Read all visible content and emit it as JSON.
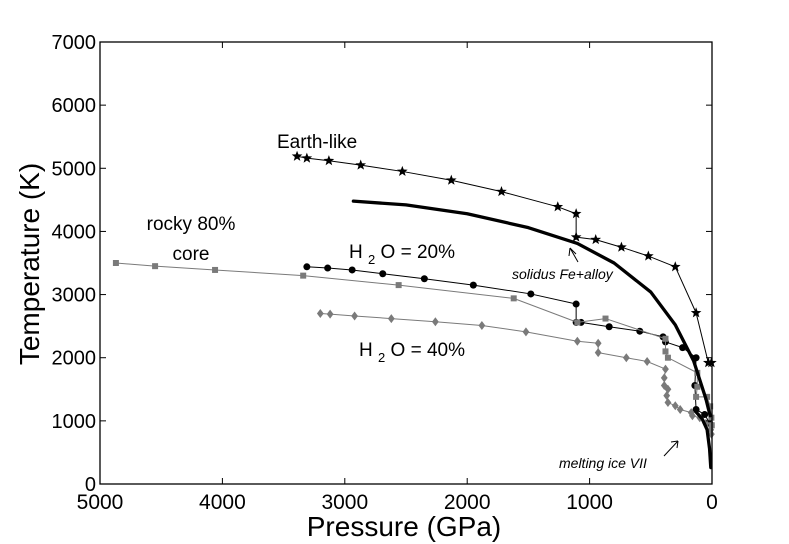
{
  "chart_data": {
    "type": "line",
    "title": "",
    "xlabel": "Pressure (GPa)",
    "ylabel": "Temperature (K)",
    "xlim": [
      5000,
      0
    ],
    "ylim": [
      0,
      7000
    ],
    "x_ticks": [
      "5000",
      "4000",
      "3000",
      "2000",
      "1000",
      "0"
    ],
    "y_ticks": [
      "0",
      "1000",
      "2000",
      "3000",
      "4000",
      "5000",
      "6000",
      "7000"
    ],
    "grid": false,
    "colors": {
      "black": "#000000",
      "gray": "#7a7a7a",
      "white": "#ffffff"
    },
    "series": [
      {
        "name": "Earth-like",
        "label": "Earth-like",
        "marker": "star",
        "color": "#000000",
        "values": [
          [
            3390,
            5190
          ],
          [
            3310,
            5160
          ],
          [
            3130,
            5120
          ],
          [
            2870,
            5050
          ],
          [
            2530,
            4950
          ],
          [
            2130,
            4810
          ],
          [
            1720,
            4630
          ],
          [
            1260,
            4390
          ],
          [
            1110,
            4280
          ],
          [
            1110,
            3910
          ],
          [
            950,
            3870
          ],
          [
            740,
            3750
          ],
          [
            520,
            3610
          ],
          [
            300,
            3440
          ],
          [
            130,
            2710
          ],
          [
            30,
            1920
          ],
          [
            5,
            1920
          ]
        ]
      },
      {
        "name": "H2O = 20%",
        "label_main": "H",
        "label_sub": "2",
        "label_rest": "O = 20%",
        "marker": "circle",
        "color": "#000000",
        "values": [
          [
            3310,
            3440
          ],
          [
            3140,
            3420
          ],
          [
            2940,
            3390
          ],
          [
            2690,
            3330
          ],
          [
            2350,
            3250
          ],
          [
            1950,
            3150
          ],
          [
            1480,
            3010
          ],
          [
            1110,
            2850
          ],
          [
            1110,
            2560
          ],
          [
            1070,
            2560
          ],
          [
            840,
            2490
          ],
          [
            590,
            2420
          ],
          [
            400,
            2330
          ],
          [
            380,
            2250
          ],
          [
            240,
            2160
          ],
          [
            130,
            2000
          ],
          [
            140,
            1560
          ],
          [
            130,
            1180
          ],
          [
            60,
            1100
          ],
          [
            15,
            950
          ]
        ]
      },
      {
        "name": "rocky 80% core",
        "label_line1": "rocky 80%",
        "label_line2": "core",
        "marker": "square",
        "color": "#7a7a7a",
        "values": [
          [
            4870,
            3500
          ],
          [
            4550,
            3450
          ],
          [
            4060,
            3390
          ],
          [
            3340,
            3300
          ],
          [
            2560,
            3150
          ],
          [
            1620,
            2940
          ],
          [
            1100,
            2560
          ],
          [
            870,
            2620
          ],
          [
            380,
            2300
          ],
          [
            380,
            2100
          ],
          [
            360,
            2000
          ],
          [
            120,
            1760
          ],
          [
            120,
            1540
          ],
          [
            130,
            1380
          ],
          [
            40,
            1380
          ],
          [
            15,
            1230
          ],
          [
            5,
            1050
          ],
          [
            2,
            930
          ]
        ]
      },
      {
        "name": "H2O = 40%",
        "label_main": "H",
        "label_sub": "2",
        "label_rest": "O = 40%",
        "marker": "diamond",
        "color": "#7a7a7a",
        "values": [
          [
            3200,
            2700
          ],
          [
            3120,
            2690
          ],
          [
            2920,
            2660
          ],
          [
            2620,
            2620
          ],
          [
            2260,
            2570
          ],
          [
            1880,
            2510
          ],
          [
            1520,
            2410
          ],
          [
            1100,
            2260
          ],
          [
            930,
            2230
          ],
          [
            930,
            2080
          ],
          [
            700,
            2000
          ],
          [
            530,
            1940
          ],
          [
            380,
            1820
          ],
          [
            390,
            1680
          ],
          [
            390,
            1560
          ],
          [
            360,
            1500
          ],
          [
            370,
            1400
          ],
          [
            360,
            1290
          ],
          [
            300,
            1240
          ],
          [
            260,
            1180
          ],
          [
            170,
            1130
          ],
          [
            160,
            1080
          ],
          [
            100,
            1050
          ],
          [
            50,
            960
          ],
          [
            10,
            860
          ],
          [
            5,
            790
          ]
        ]
      },
      {
        "name": "solidus Fe+alloy",
        "label": "solidus Fe+alloy",
        "marker": "none",
        "color": "#000000",
        "values": [
          [
            2930,
            4480
          ],
          [
            2500,
            4420
          ],
          [
            2000,
            4280
          ],
          [
            1500,
            4060
          ],
          [
            1100,
            3810
          ],
          [
            800,
            3500
          ],
          [
            500,
            3040
          ],
          [
            300,
            2520
          ],
          [
            150,
            1950
          ],
          [
            50,
            1350
          ],
          [
            15,
            1080
          ]
        ]
      },
      {
        "name": "melting ice VII",
        "label": "melting ice VII",
        "marker": "none",
        "color": "#000000",
        "values": [
          [
            130,
            1140
          ],
          [
            80,
            1030
          ],
          [
            40,
            860
          ],
          [
            20,
            560
          ],
          [
            10,
            260
          ]
        ]
      }
    ],
    "annotations": {
      "earth_like": "Earth-like",
      "rocky_line1": "rocky 80%",
      "rocky_line2": "core",
      "h2o20_main": "H",
      "h2o20_sub": "2",
      "h2o20_rest": "O = 20%",
      "h2o40_main": "H",
      "h2o40_sub": "2",
      "h2o40_rest": "O = 40%",
      "solidus": "solidus Fe+alloy",
      "ice": "melting ice VII"
    }
  }
}
